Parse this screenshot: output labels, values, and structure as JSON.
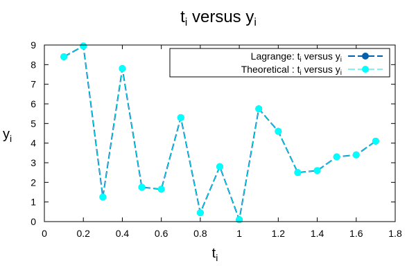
{
  "chart_data": {
    "type": "line",
    "title": {
      "base": "t",
      "sub": "i",
      "mid": " versus y",
      "sub2": "i"
    },
    "xlabel": {
      "base": "t",
      "sub": "i"
    },
    "ylabel": {
      "base": "y",
      "sub": "i"
    },
    "xlim": [
      0,
      1.8
    ],
    "ylim": [
      0,
      9
    ],
    "xticks": [
      "0",
      "0.2",
      "0.4",
      "0.6",
      "0.8",
      "1",
      "1.2",
      "1.4",
      "1.6",
      "1.8"
    ],
    "yticks": [
      "0",
      "1",
      "2",
      "3",
      "4",
      "5",
      "6",
      "7",
      "8",
      "9"
    ],
    "grid": false,
    "legend_position": "top-right",
    "x": [
      0.1,
      0.2,
      0.3,
      0.4,
      0.5,
      0.6,
      0.7,
      0.8,
      0.9,
      1.0,
      1.1,
      1.2,
      1.3,
      1.4,
      1.5,
      1.6,
      1.7
    ],
    "series": [
      {
        "name": "Lagrange: t_i versus y_i",
        "legend": {
          "a": "Lagrange: t",
          "sub": "i",
          "b": " versus y",
          "sub2": "i"
        },
        "color": "#0060ad",
        "marker_color": "#0060ad",
        "values": [
          8.4,
          8.95,
          1.25,
          7.8,
          1.75,
          1.65,
          5.3,
          0.45,
          2.8,
          0.1,
          5.75,
          4.6,
          2.5,
          2.6,
          3.3,
          3.4,
          4.1
        ]
      },
      {
        "name": "Theoretical : t_i versus y_i",
        "legend": {
          "a": "Theoretical : t",
          "sub": "i",
          "b": " versus y",
          "sub2": "i"
        },
        "color": "#00e5ee",
        "marker_color": "#00ffff",
        "values": [
          8.4,
          8.95,
          1.25,
          7.8,
          1.75,
          1.65,
          5.3,
          0.45,
          2.8,
          0.1,
          5.75,
          4.6,
          2.5,
          2.6,
          3.3,
          3.4,
          4.1
        ]
      }
    ]
  }
}
